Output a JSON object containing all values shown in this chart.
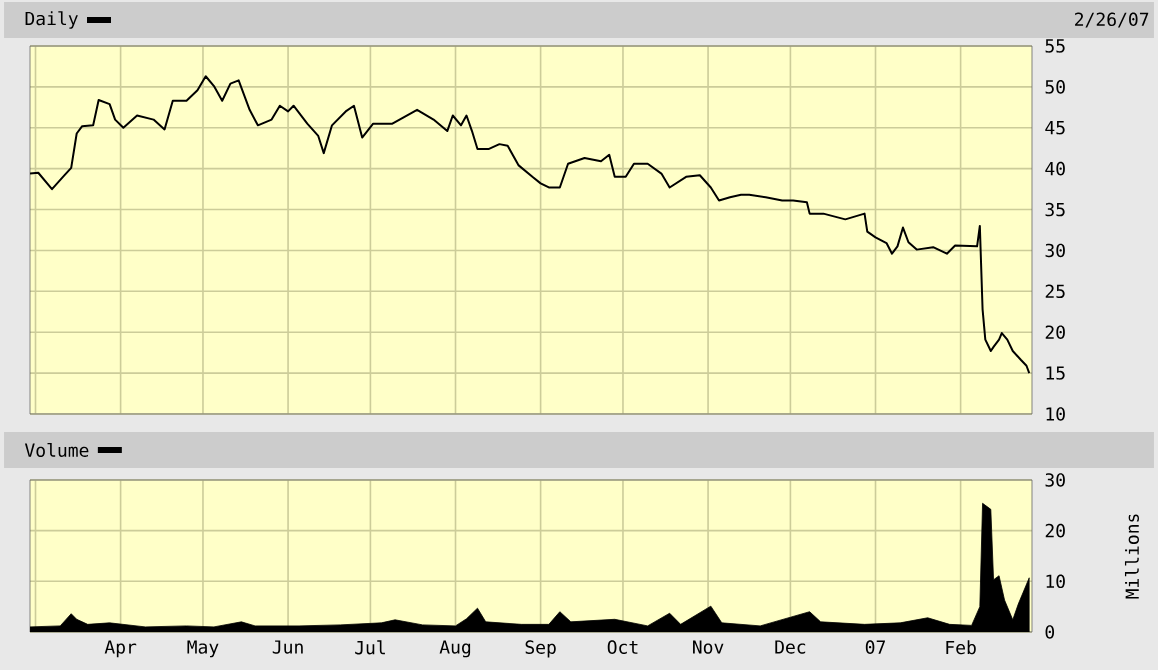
{
  "chart_data": [
    {
      "type": "line",
      "annotations": [
        "2/26/07"
      ],
      "legend": "top left",
      "grid": true,
      "tick_labels": "y",
      "xlim": [
        "2006-02-27",
        "2007-02-27"
      ],
      "ylim": [
        10,
        55
      ],
      "yticks": [
        10,
        15,
        20,
        25,
        30,
        35,
        40,
        45,
        50,
        55
      ],
      "xticks": [
        {
          "value": "2006-03-01",
          "label": null
        },
        {
          "value": "2006-04-01",
          "label": null
        },
        {
          "value": "2006-05-01",
          "label": null
        },
        {
          "value": "2006-06-01",
          "label": null
        },
        {
          "value": "2006-07-01",
          "label": null
        },
        {
          "value": "2006-08-01",
          "label": null
        },
        {
          "value": "2006-09-01",
          "label": null
        },
        {
          "value": "2006-10-01",
          "label": null
        },
        {
          "value": "2006-11-01",
          "label": null
        },
        {
          "value": "2006-12-01",
          "label": null
        },
        {
          "value": "2007-01-01",
          "label": null
        },
        {
          "value": "2007-02-01",
          "label": null
        }
      ],
      "x": [
        "2006-02-27",
        "2006-03-02",
        "2006-03-07",
        "2006-03-11",
        "2006-03-14",
        "2006-03-16",
        "2006-03-18",
        "2006-03-22",
        "2006-03-24",
        "2006-03-28",
        "2006-03-30",
        "2006-04-02",
        "2006-04-07",
        "2006-04-13",
        "2006-04-17",
        "2006-04-20",
        "2006-04-25",
        "2006-04-29",
        "2006-05-02",
        "2006-05-05",
        "2006-05-08",
        "2006-05-11",
        "2006-05-14",
        "2006-05-18",
        "2006-05-21",
        "2006-05-26",
        "2006-05-29",
        "2006-06-01",
        "2006-06-03",
        "2006-06-08",
        "2006-06-12",
        "2006-06-14",
        "2006-06-17",
        "2006-06-22",
        "2006-06-25",
        "2006-06-28",
        "2006-07-02",
        "2006-07-09",
        "2006-07-18",
        "2006-07-24",
        "2006-07-29",
        "2006-07-31",
        "2006-08-03",
        "2006-08-05",
        "2006-08-07",
        "2006-08-09",
        "2006-08-13",
        "2006-08-17",
        "2006-08-20",
        "2006-08-24",
        "2006-08-29",
        "2006-09-01",
        "2006-09-04",
        "2006-09-08",
        "2006-09-11",
        "2006-09-17",
        "2006-09-23",
        "2006-09-26",
        "2006-09-28",
        "2006-10-02",
        "2006-10-05",
        "2006-10-10",
        "2006-10-15",
        "2006-10-18",
        "2006-10-24",
        "2006-10-29",
        "2006-11-02",
        "2006-11-05",
        "2006-11-09",
        "2006-11-13",
        "2006-11-16",
        "2006-11-22",
        "2006-11-28",
        "2006-12-02",
        "2006-12-07",
        "2006-12-08",
        "2006-12-13",
        "2006-12-21",
        "2006-12-28",
        "2006-12-29",
        "2007-01-01",
        "2007-01-05",
        "2007-01-07",
        "2007-01-09",
        "2007-01-11",
        "2007-01-13",
        "2007-01-16",
        "2007-01-22",
        "2007-01-27",
        "2007-01-30",
        "2007-02-07",
        "2007-02-08",
        "2007-02-09",
        "2007-02-10",
        "2007-02-12",
        "2007-02-13",
        "2007-02-15",
        "2007-02-16",
        "2007-02-18",
        "2007-02-20",
        "2007-02-23",
        "2007-02-25",
        "2007-02-26"
      ],
      "series": [
        {
          "name": "Daily",
          "color": "#000000",
          "values": [
            39.4,
            39.5,
            37.5,
            39.0,
            40.1,
            44.3,
            45.2,
            45.3,
            48.4,
            47.9,
            46.0,
            45.0,
            46.5,
            46.0,
            44.8,
            48.3,
            48.3,
            49.6,
            51.3,
            50.1,
            48.3,
            50.4,
            50.8,
            47.2,
            45.3,
            46.0,
            47.7,
            47.0,
            47.7,
            45.5,
            44.0,
            41.9,
            45.3,
            47.0,
            47.7,
            43.8,
            45.5,
            45.5,
            47.2,
            46.0,
            44.6,
            46.5,
            45.3,
            46.5,
            44.6,
            42.4,
            42.4,
            43.0,
            42.8,
            40.4,
            39.0,
            38.2,
            37.7,
            37.7,
            40.6,
            41.3,
            40.9,
            41.7,
            39.0,
            39.0,
            40.6,
            40.6,
            39.4,
            37.7,
            39.0,
            39.2,
            37.7,
            36.1,
            36.5,
            36.8,
            36.8,
            36.5,
            36.1,
            36.1,
            35.9,
            34.5,
            34.5,
            33.8,
            34.5,
            32.3,
            31.6,
            30.9,
            29.6,
            30.5,
            32.8,
            31.0,
            30.1,
            30.4,
            29.6,
            30.6,
            30.5,
            33.0,
            22.8,
            19.1,
            17.7,
            18.2,
            19.1,
            19.9,
            19.1,
            17.7,
            16.6,
            15.9,
            15.0
          ]
        }
      ]
    },
    {
      "type": "area",
      "legend": "top left",
      "grid": true,
      "ylabel": "Millions",
      "xlim": [
        "2006-02-27",
        "2007-02-27"
      ],
      "ylim": [
        0,
        30
      ],
      "yticks": [
        0,
        10,
        20,
        30
      ],
      "xticks": [
        {
          "value": "2006-03-01",
          "label": null
        },
        {
          "value": "2006-04-01",
          "label": "Apr"
        },
        {
          "value": "2006-05-01",
          "label": "May"
        },
        {
          "value": "2006-06-01",
          "label": "Jun"
        },
        {
          "value": "2006-07-01",
          "label": "Jul"
        },
        {
          "value": "2006-08-01",
          "label": "Aug"
        },
        {
          "value": "2006-09-01",
          "label": "Sep"
        },
        {
          "value": "2006-10-01",
          "label": "Oct"
        },
        {
          "value": "2006-11-01",
          "label": "Nov"
        },
        {
          "value": "2006-12-01",
          "label": "Dec"
        },
        {
          "value": "2007-01-01",
          "label": "07"
        },
        {
          "value": "2007-02-01",
          "label": "Feb"
        }
      ],
      "x": [
        "2006-02-27",
        "2006-03-10",
        "2006-03-14",
        "2006-03-16",
        "2006-03-20",
        "2006-03-28",
        "2006-04-10",
        "2006-04-25",
        "2006-05-05",
        "2006-05-15",
        "2006-05-20",
        "2006-06-05",
        "2006-06-20",
        "2006-07-05",
        "2006-07-10",
        "2006-07-20",
        "2006-08-01",
        "2006-08-05",
        "2006-08-09",
        "2006-08-12",
        "2006-08-25",
        "2006-09-04",
        "2006-09-08",
        "2006-09-12",
        "2006-09-28",
        "2006-10-10",
        "2006-10-18",
        "2006-10-22",
        "2006-11-02",
        "2006-11-06",
        "2006-11-20",
        "2006-12-08",
        "2006-12-12",
        "2006-12-28",
        "2007-01-10",
        "2007-01-20",
        "2007-01-28",
        "2007-02-05",
        "2007-02-08",
        "2007-02-09",
        "2007-02-12",
        "2007-02-13",
        "2007-02-15",
        "2007-02-17",
        "2007-02-20",
        "2007-02-22",
        "2007-02-26"
      ],
      "series": [
        {
          "name": "Volume",
          "color": "#000000",
          "values": [
            1.0,
            1.2,
            3.6,
            2.5,
            1.5,
            1.8,
            1.0,
            1.2,
            1.0,
            2.0,
            1.2,
            1.2,
            1.4,
            1.8,
            2.4,
            1.4,
            1.2,
            2.6,
            4.7,
            2.0,
            1.5,
            1.5,
            4.0,
            2.0,
            2.5,
            1.2,
            3.7,
            1.5,
            5.1,
            1.8,
            1.2,
            4.0,
            2.0,
            1.5,
            1.8,
            2.8,
            1.5,
            1.3,
            5.0,
            25.4,
            24.2,
            10.3,
            11.1,
            6.3,
            2.4,
            5.5,
            10.7
          ]
        }
      ]
    }
  ]
}
